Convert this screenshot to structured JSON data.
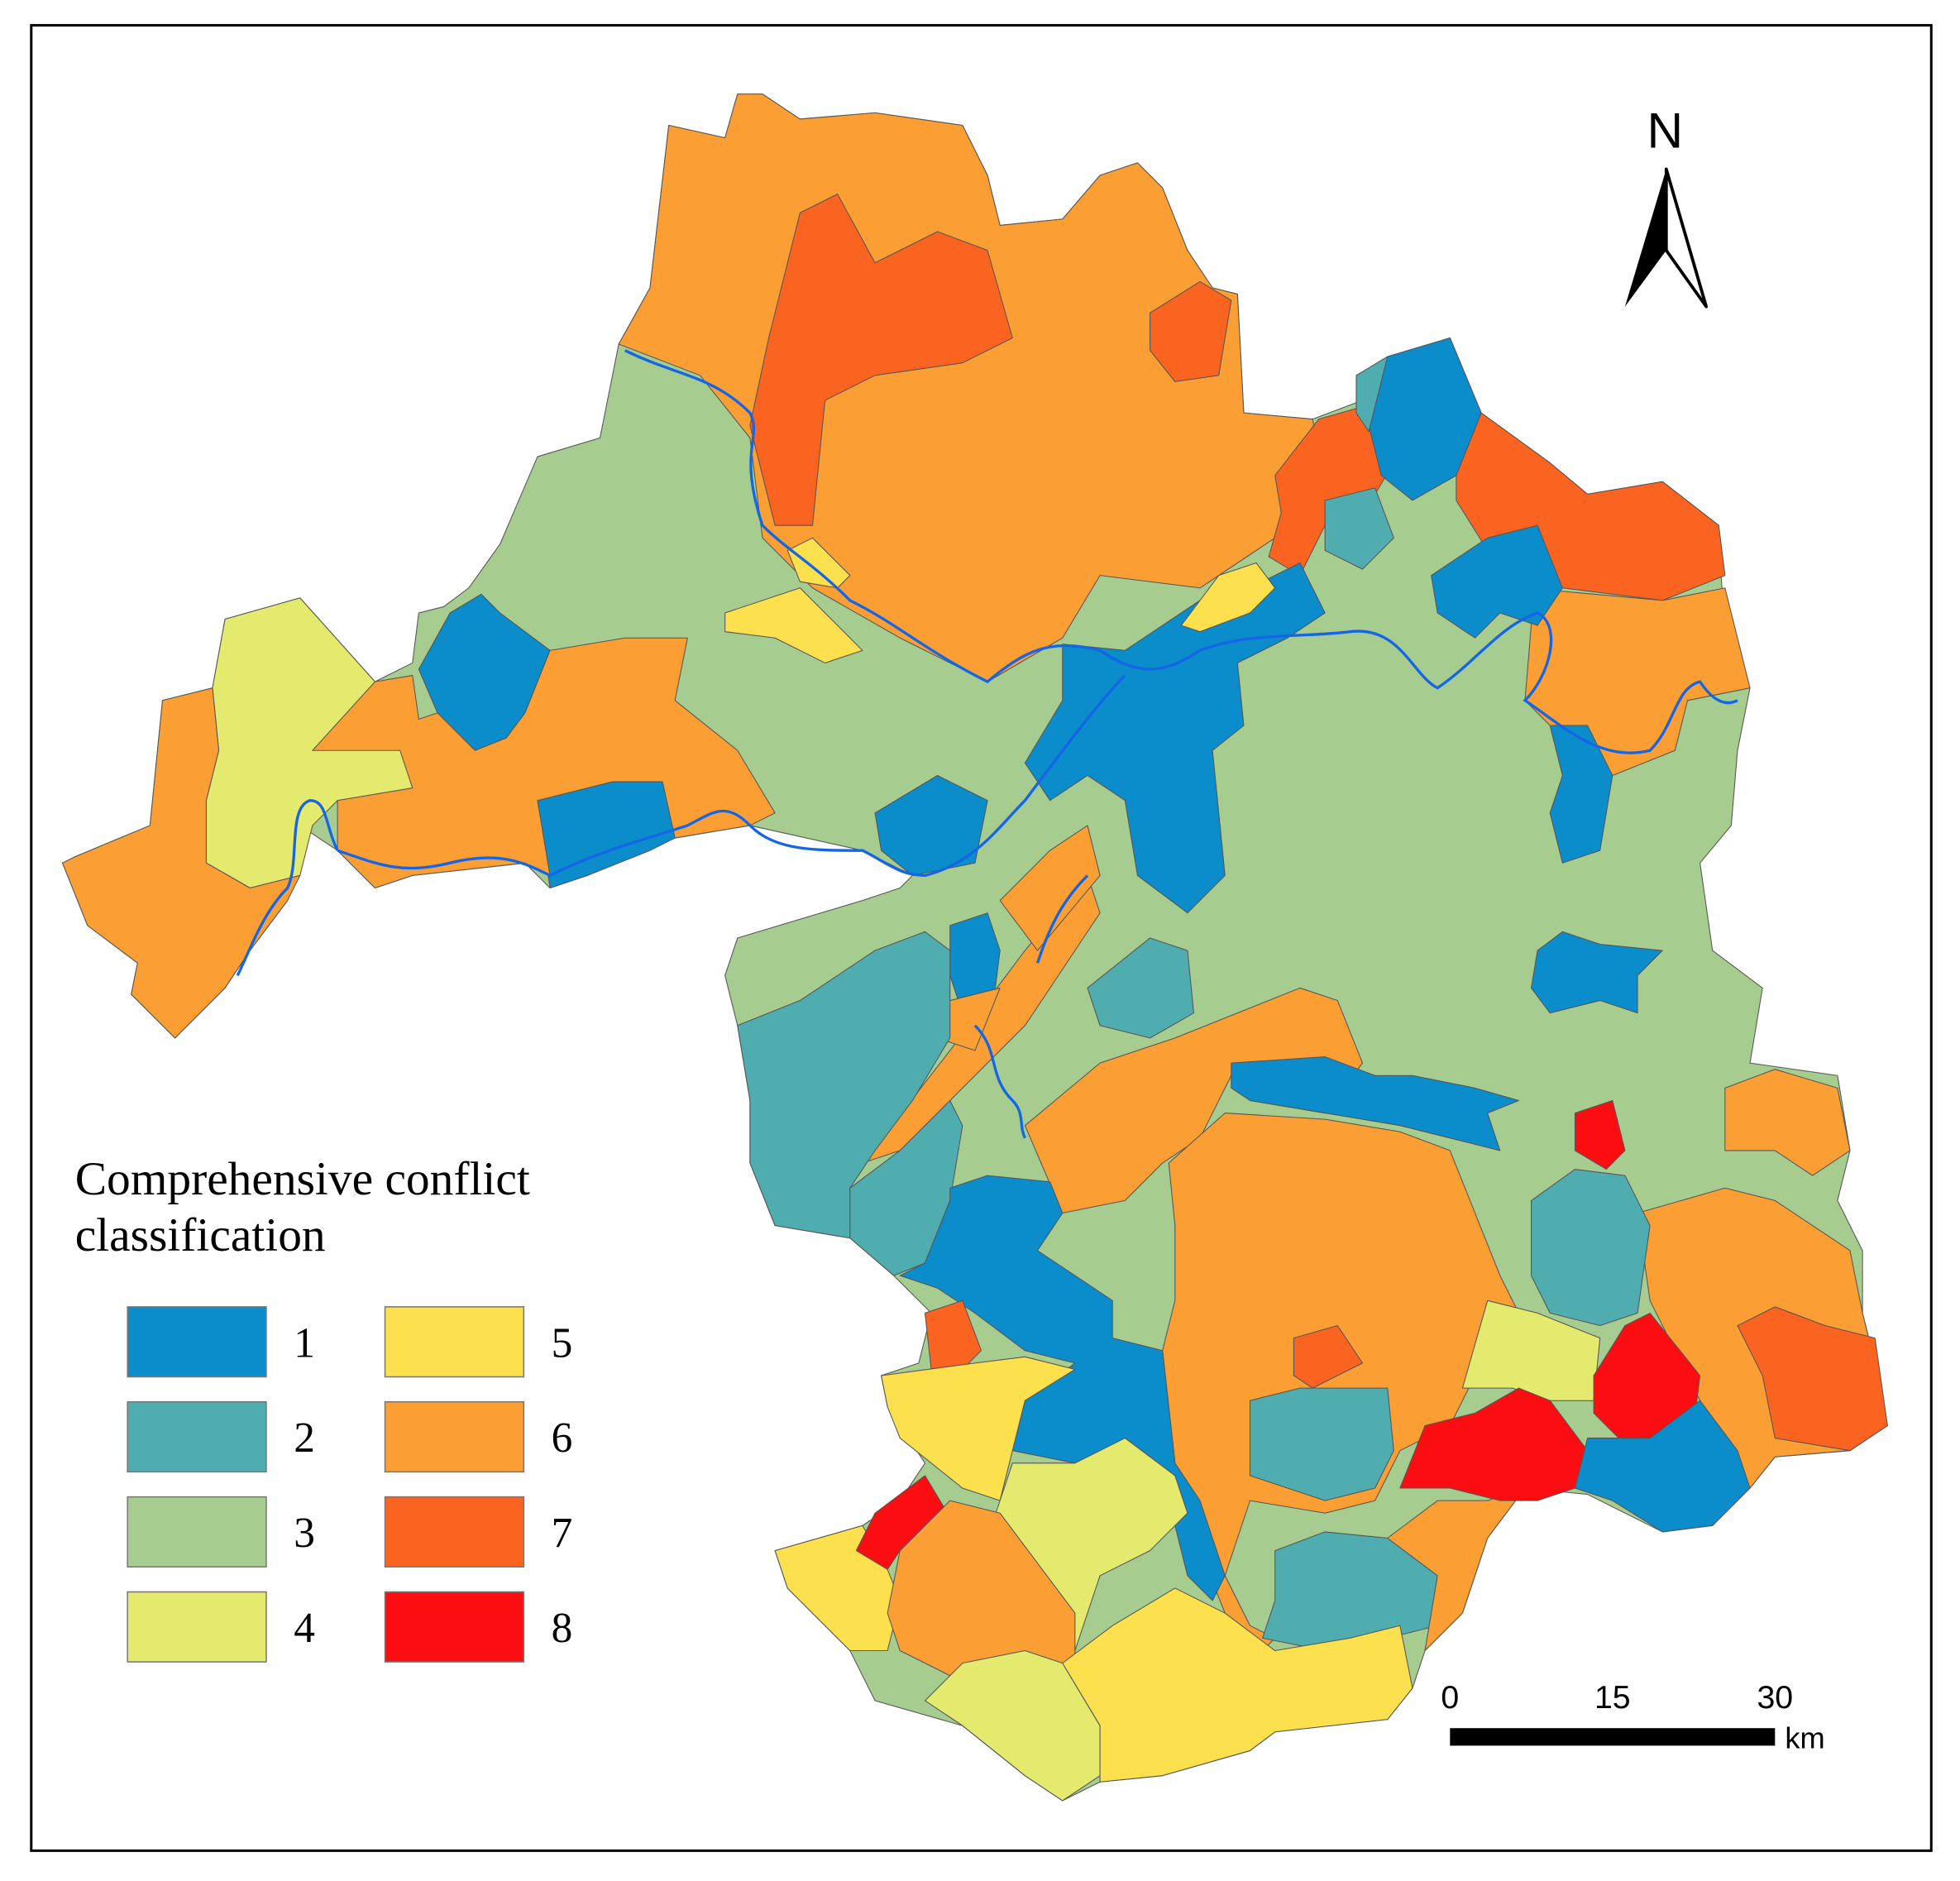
{
  "legend": {
    "title_lines": [
      "Comprehensive conflict",
      "classification"
    ],
    "items": [
      {
        "label": "1",
        "color": "#0b8ccb"
      },
      {
        "label": "2",
        "color": "#4fadb0"
      },
      {
        "label": "3",
        "color": "#a7cc8f"
      },
      {
        "label": "4",
        "color": "#e3ea6e"
      },
      {
        "label": "5",
        "color": "#fde04d"
      },
      {
        "label": "6",
        "color": "#fb9f35"
      },
      {
        "label": "7",
        "color": "#fb6420"
      },
      {
        "label": "8",
        "color": "#fc0d12"
      }
    ]
  },
  "north_arrow": {
    "label": "N"
  },
  "scale_bar": {
    "ticks": [
      0,
      15,
      30
    ],
    "unit": "km"
  }
}
